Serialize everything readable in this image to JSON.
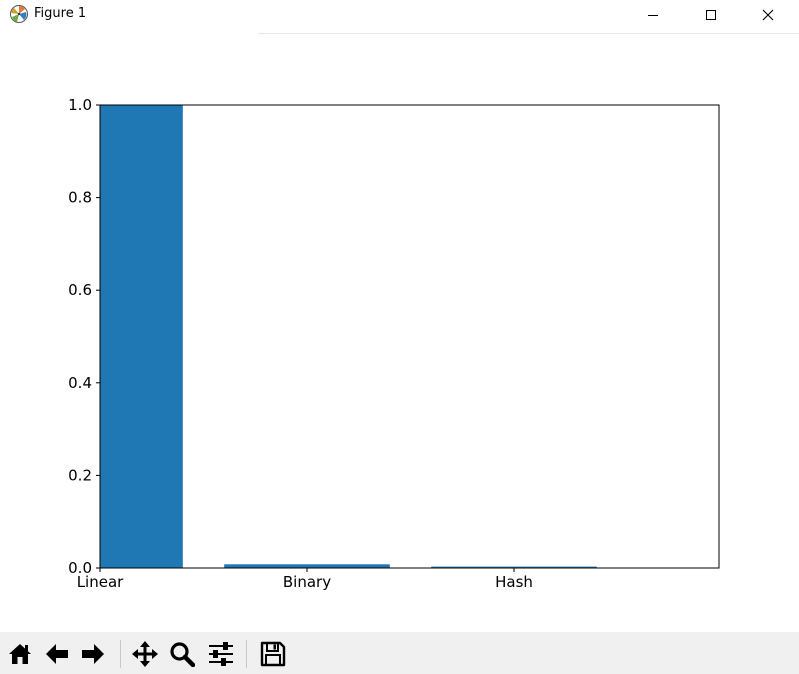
{
  "window": {
    "title": "Figure 1"
  },
  "toolbar": {
    "buttons": [
      {
        "icon": "home-icon",
        "name": "home-button"
      },
      {
        "icon": "back-arrow-icon",
        "name": "back-button"
      },
      {
        "icon": "forward-arrow-icon",
        "name": "forward-button"
      },
      {
        "icon": "pan-icon",
        "name": "pan-button"
      },
      {
        "icon": "zoom-icon",
        "name": "zoom-button"
      },
      {
        "icon": "configure-subplots-icon",
        "name": "configure-subplots-button"
      },
      {
        "icon": "save-icon",
        "name": "save-button"
      }
    ]
  },
  "chart_data": {
    "type": "bar",
    "categories": [
      "Linear",
      "Binary",
      "Hash"
    ],
    "values": [
      1.0,
      0.008,
      0.003
    ],
    "title": "",
    "xlabel": "",
    "ylabel": "",
    "ylim": [
      0,
      1.0
    ],
    "yticks": [
      "0.0",
      "0.2",
      "0.4",
      "0.6",
      "0.8",
      "1.0"
    ],
    "bar_color": "#1f77b4",
    "grid": false
  }
}
